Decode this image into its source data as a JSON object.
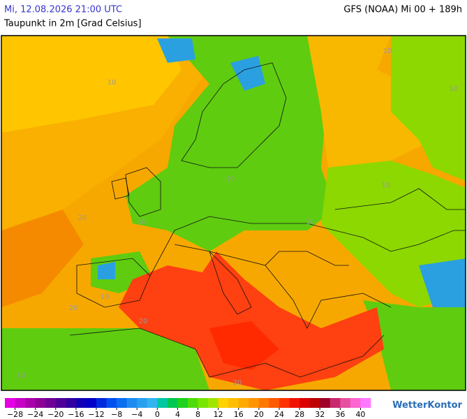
{
  "header": {
    "date": "Mi, 12.08.2026 21:00 UTC",
    "parameter": "Taupunkt in 2m [Grad Celsius]",
    "model": "GFS (NOAA) Mi 00 + 189h"
  },
  "map": {
    "contour_labels": [
      "10",
      "10",
      "10",
      "20",
      "10",
      "10",
      "10",
      "20",
      "10",
      "10",
      "20",
      "10",
      "20"
    ]
  },
  "colorbar": {
    "clim": [
      -30,
      42
    ],
    "colors": [
      "#e600e6",
      "#c800c8",
      "#aa00aa",
      "#8c0096",
      "#6e0096",
      "#500096",
      "#3200a0",
      "#1400b4",
      "#0000c8",
      "#0028dc",
      "#0050f0",
      "#0a6ef0",
      "#1e8cf0",
      "#28a0f0",
      "#32b4f0",
      "#00c8a0",
      "#00c850",
      "#1ed21e",
      "#50dc0a",
      "#78e600",
      "#a0e600",
      "#ffd200",
      "#ffbe00",
      "#ffaa00",
      "#ff9600",
      "#ff7800",
      "#ff5a00",
      "#ff3200",
      "#f01400",
      "#dc0000",
      "#be0000",
      "#a00028",
      "#c8286e",
      "#e650a0",
      "#ff64d2",
      "#ff78ff"
    ],
    "ticks": [
      {
        "value": -28,
        "label": "−28"
      },
      {
        "value": -24,
        "label": "−24"
      },
      {
        "value": -20,
        "label": "−20"
      },
      {
        "value": -16,
        "label": "−16"
      },
      {
        "value": -12,
        "label": "−12"
      },
      {
        "value": -8,
        "label": "−8"
      },
      {
        "value": -4,
        "label": "−4"
      },
      0,
      4,
      8,
      12,
      16,
      20,
      24,
      28,
      32,
      36,
      40
    ]
  },
  "logo": "WetterKontor"
}
